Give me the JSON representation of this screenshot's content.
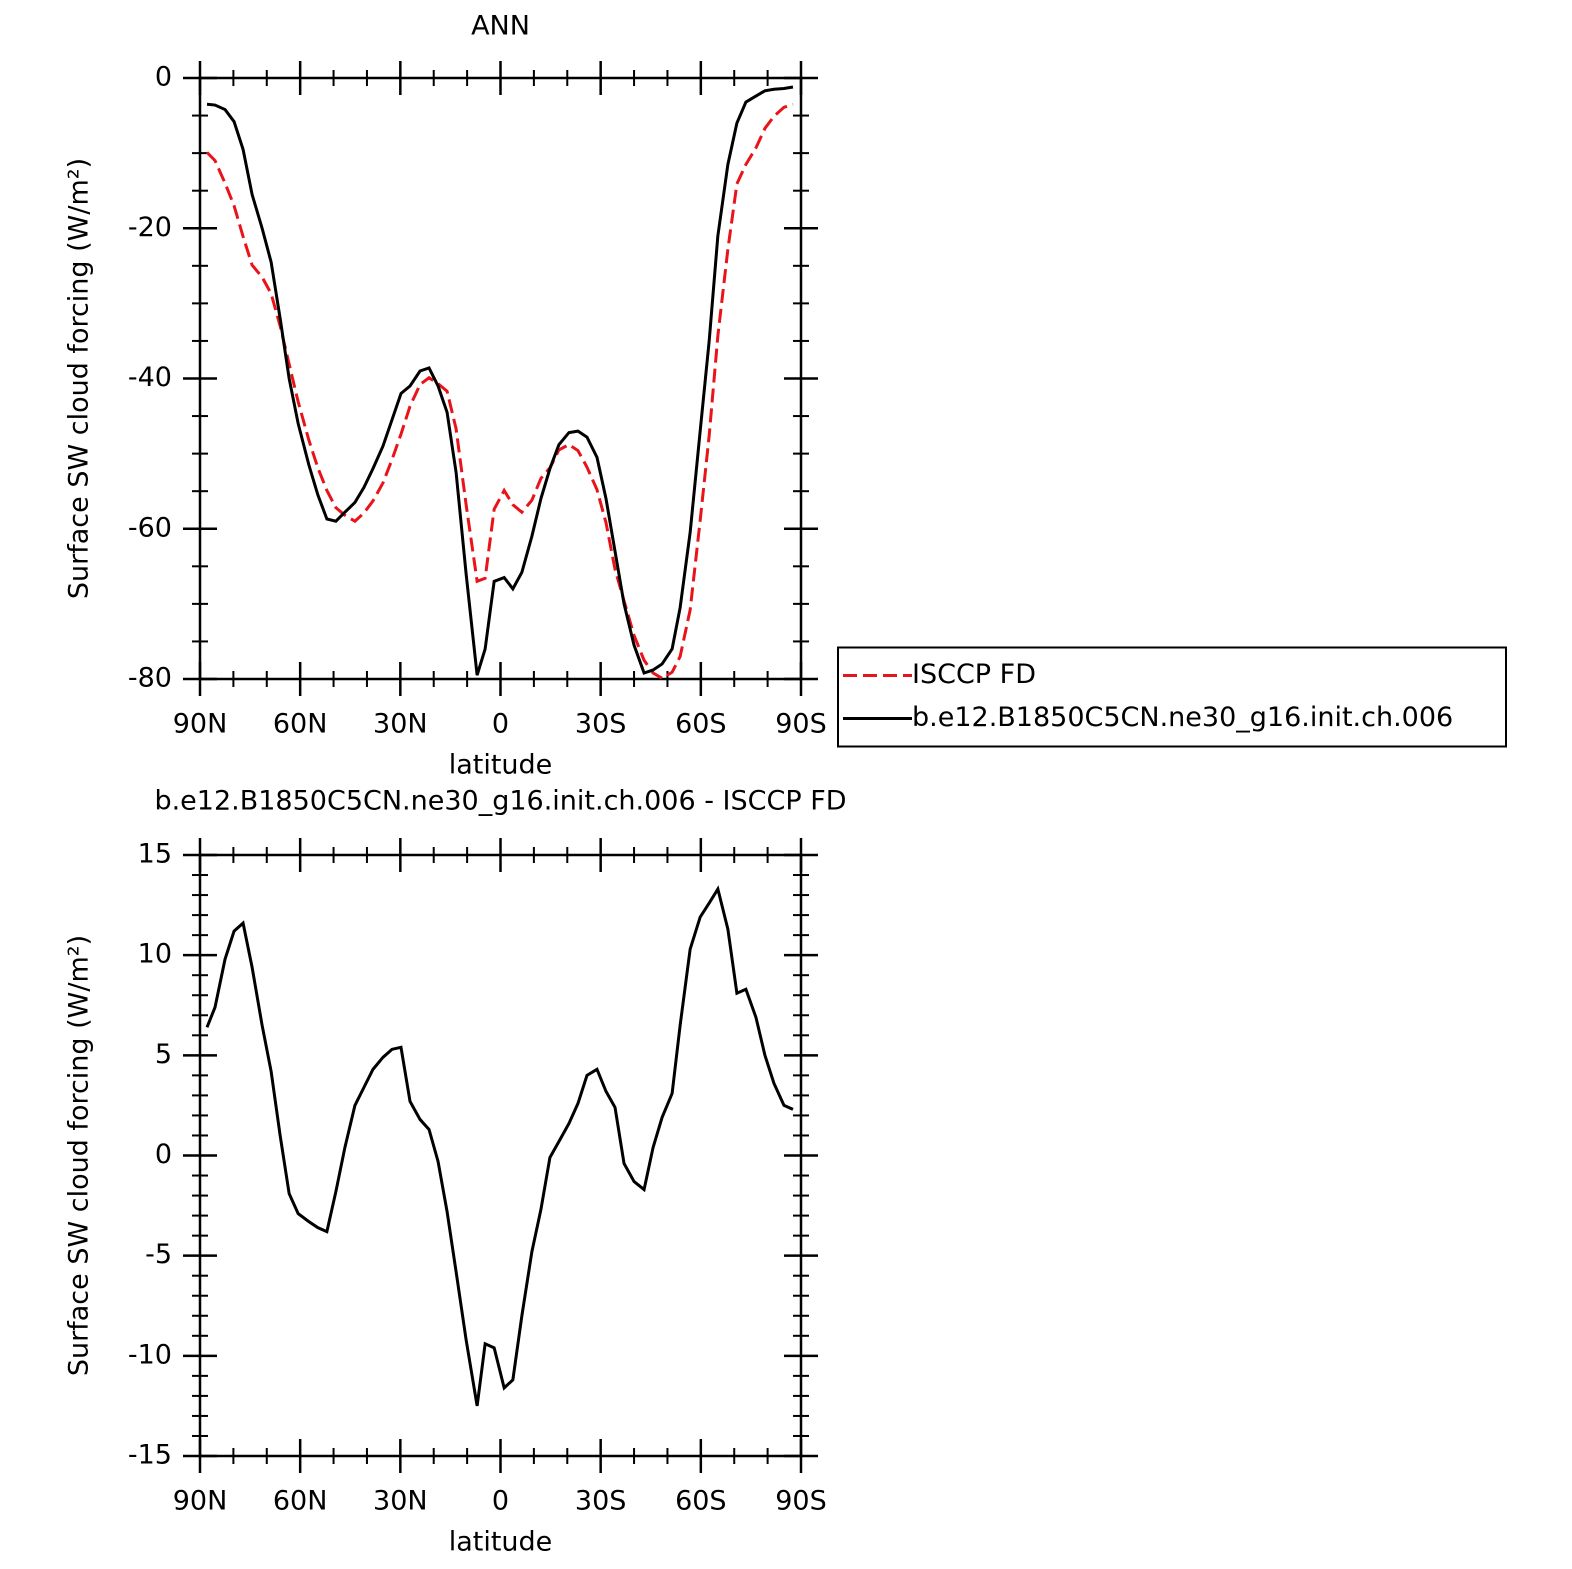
{
  "chart_data": [
    {
      "type": "line",
      "title": "ANN",
      "xlabel": "latitude",
      "ylabel": "Surface SW cloud forcing (W/m²)",
      "xlim": [
        90,
        -90
      ],
      "xticks": [
        {
          "value": 90,
          "label": "90N"
        },
        {
          "value": 60,
          "label": "60N"
        },
        {
          "value": 30,
          "label": "30N"
        },
        0,
        {
          "value": -30,
          "label": "30S"
        },
        {
          "value": -60,
          "label": "60S"
        },
        {
          "value": -90,
          "label": "90S"
        }
      ],
      "ylim": [
        -80,
        0
      ],
      "yticks": [
        -80,
        -60,
        -40,
        -20,
        0
      ],
      "legend": "right",
      "x": [
        87.9,
        85.5,
        82.5,
        79.8,
        77.1,
        74.4,
        71.4,
        68.7,
        66.0,
        63.3,
        60.6,
        57.4,
        54.7,
        52.0,
        49.3,
        46.6,
        43.6,
        40.9,
        38.2,
        35.2,
        32.5,
        29.8,
        27.1,
        24.1,
        21.4,
        18.7,
        16.0,
        13.3,
        10.3,
        7.0,
        4.6,
        1.9,
        -1.1,
        -3.7,
        -6.4,
        -9.4,
        -12.1,
        -14.8,
        -17.5,
        -20.5,
        -23.2,
        -25.9,
        -28.9,
        -31.6,
        -34.3,
        -37.0,
        -40.0,
        -43.0,
        -45.7,
        -48.4,
        -51.4,
        -53.8,
        -56.8,
        -59.8,
        -62.5,
        -65.1,
        -68.1,
        -70.8,
        -73.5,
        -76.5,
        -79.2,
        -81.9,
        -84.9,
        -87.6
      ],
      "series": [
        {
          "name": "ISCCP FD",
          "color": "#e8141a",
          "line_style": "dashed",
          "values": [
            -9.9,
            -11.0,
            -14.0,
            -17.0,
            -21.1,
            -24.9,
            -26.5,
            -28.7,
            -33.0,
            -38.1,
            -43.1,
            -48.2,
            -51.9,
            -54.9,
            -57.2,
            -58.2,
            -59.0,
            -57.9,
            -56.3,
            -53.9,
            -50.8,
            -47.4,
            -43.7,
            -40.8,
            -39.9,
            -40.7,
            -41.7,
            -46.7,
            -56.8,
            -67.0,
            -66.6,
            -57.4,
            -54.9,
            -56.8,
            -57.8,
            -56.2,
            -53.3,
            -51.9,
            -49.5,
            -48.8,
            -49.6,
            -51.8,
            -54.8,
            -59.2,
            -65.4,
            -69.6,
            -74.2,
            -77.5,
            -79.2,
            -79.9,
            -79.1,
            -77.0,
            -70.8,
            -58.9,
            -47.6,
            -34.3,
            -22.8,
            -14.1,
            -11.5,
            -9.3,
            -6.7,
            -5.1,
            -3.9,
            -3.5
          ]
        },
        {
          "name": "b.e12.B1850C5CN.ne30_g16.init.ch.006",
          "color": "#000000",
          "line_style": "solid",
          "values": [
            -3.5,
            -3.6,
            -4.2,
            -5.8,
            -9.5,
            -15.5,
            -20,
            -24.5,
            -32,
            -40,
            -46,
            -51.5,
            -55.5,
            -58.7,
            -59,
            -57.8,
            -56.5,
            -54.5,
            -52,
            -49,
            -45.5,
            -42,
            -41,
            -39,
            -38.6,
            -41,
            -44.5,
            -52.5,
            -66,
            -79.5,
            -76,
            -67,
            -66.5,
            -68,
            -65.8,
            -61,
            -56,
            -52,
            -48.8,
            -47.2,
            -47,
            -47.8,
            -50.5,
            -56,
            -63,
            -70,
            -75.5,
            -79.2,
            -78.8,
            -78,
            -76,
            -70.5,
            -60.5,
            -47,
            -35,
            -21,
            -11.5,
            -6,
            -3.2,
            -2.4,
            -1.7,
            -1.5,
            -1.4,
            -1.2
          ]
        }
      ]
    },
    {
      "type": "line",
      "title": "b.e12.B1850C5CN.ne30_g16.init.ch.006 - ISCCP FD",
      "xlabel": "latitude",
      "ylabel": "Surface SW cloud forcing (W/m²)",
      "xlim": [
        90,
        -90
      ],
      "xticks": [
        {
          "value": 90,
          "label": "90N"
        },
        {
          "value": 60,
          "label": "60N"
        },
        {
          "value": 30,
          "label": "30N"
        },
        0,
        {
          "value": -30,
          "label": "30S"
        },
        {
          "value": -60,
          "label": "60S"
        },
        {
          "value": -90,
          "label": "90S"
        }
      ],
      "ylim": [
        -15,
        15
      ],
      "yticks": [
        -15,
        -10,
        -5,
        0,
        5,
        10,
        15
      ],
      "x": [
        87.9,
        85.5,
        82.5,
        79.8,
        77.1,
        74.4,
        71.4,
        68.7,
        66.0,
        63.3,
        60.6,
        57.4,
        54.7,
        52.0,
        49.3,
        46.6,
        43.6,
        40.9,
        38.2,
        35.2,
        32.5,
        29.8,
        27.1,
        24.1,
        21.4,
        18.7,
        16.0,
        13.3,
        10.3,
        7.0,
        4.6,
        1.9,
        -1.1,
        -3.7,
        -6.4,
        -9.4,
        -12.1,
        -14.8,
        -17.5,
        -20.5,
        -23.2,
        -25.9,
        -28.9,
        -31.6,
        -34.3,
        -37.0,
        -40.0,
        -43.0,
        -45.7,
        -48.4,
        -51.4,
        -53.8,
        -56.8,
        -59.8,
        -62.5,
        -65.1,
        -68.1,
        -70.8,
        -73.5,
        -76.5,
        -79.2,
        -81.9,
        -84.9,
        -87.6
      ],
      "series": [
        {
          "color": "#000000",
          "line_style": "solid",
          "values": [
            6.4,
            7.4,
            9.8,
            11.2,
            11.6,
            9.4,
            6.5,
            4.2,
            1.0,
            -1.9,
            -2.9,
            -3.3,
            -3.6,
            -3.8,
            -1.8,
            0.4,
            2.5,
            3.4,
            4.3,
            4.9,
            5.3,
            5.4,
            2.7,
            1.8,
            1.3,
            -0.3,
            -2.8,
            -5.8,
            -9.2,
            -12.5,
            -9.4,
            -9.6,
            -11.6,
            -11.2,
            -8.0,
            -4.8,
            -2.7,
            -0.1,
            0.7,
            1.6,
            2.6,
            4.0,
            4.3,
            3.2,
            2.4,
            -0.4,
            -1.3,
            -1.7,
            0.4,
            1.9,
            3.1,
            6.5,
            10.3,
            11.9,
            12.6,
            13.3,
            11.3,
            8.1,
            8.3,
            6.9,
            5.0,
            3.6,
            2.5,
            2.3
          ]
        }
      ]
    }
  ]
}
